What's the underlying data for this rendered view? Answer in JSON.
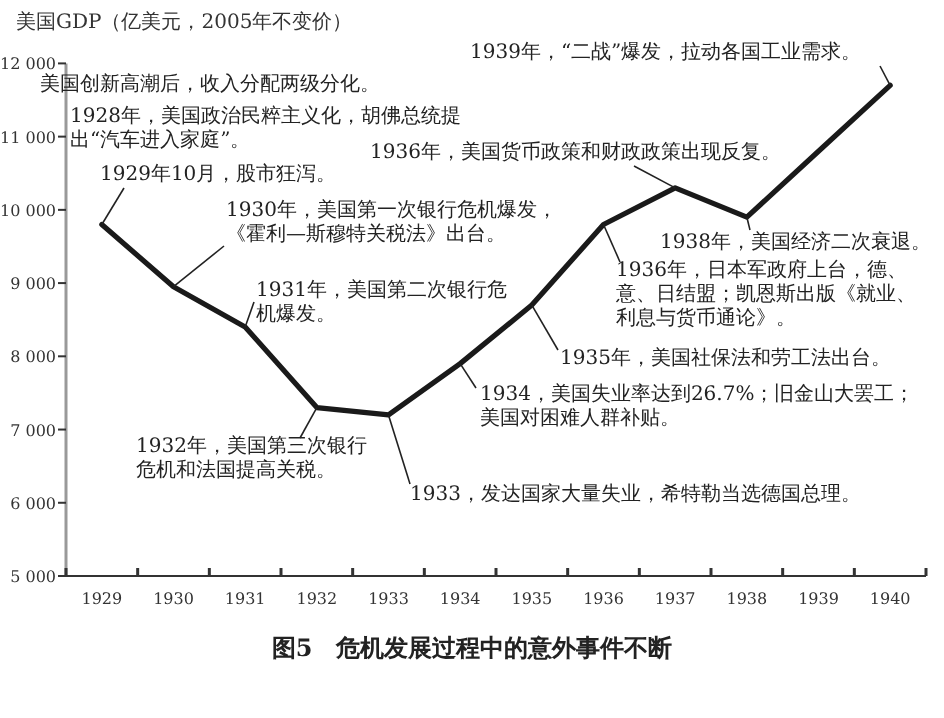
{
  "chart_data": {
    "type": "line",
    "title": "图5　危机发展过程中的意外事件不断",
    "ylabel": "美国GDP（亿美元，2005年不变价）",
    "categories": [
      "1929",
      "1930",
      "1931",
      "1932",
      "1933",
      "1934",
      "1935",
      "1936",
      "1937",
      "1938",
      "1939",
      "1940"
    ],
    "values": [
      9800,
      8950,
      8400,
      7300,
      7200,
      7900,
      8700,
      9800,
      10300,
      9900,
      10800,
      11700
    ],
    "color": "#1a1a1a",
    "marker": "none",
    "line_style": "solid",
    "grid": false,
    "ylim": [
      5000,
      12000
    ],
    "yticks": [
      {
        "value": 5000,
        "label": "5 000"
      },
      {
        "value": 6000,
        "label": "6 000"
      },
      {
        "value": 7000,
        "label": "7 000"
      },
      {
        "value": 8000,
        "label": "8 000"
      },
      {
        "value": 9000,
        "label": "9 000"
      },
      {
        "value": 10000,
        "label": "10 000"
      },
      {
        "value": 11000,
        "label": "11 000"
      },
      {
        "value": 12000,
        "label": "12 000"
      }
    ],
    "annotations": [
      "美国创新高潮后，收入分配两级分化。",
      "1928年，美国政治民粹主义化，胡佛总统提出“汽车进入家庭”。",
      {
        "text": "1929年10月，股市狂泻。",
        "x": "1929",
        "y": 9800
      },
      {
        "text": "1930年，美国第一次银行危机爆发，《霍利—斯穆特关税法》出台。",
        "x": "1930",
        "y": 8950
      },
      {
        "text": "1931年，美国第二次银行危机爆发。",
        "x": "1931",
        "y": 8400
      },
      {
        "text": "1932年，美国第三次银行危机和法国提高关税。",
        "x": "1932",
        "y": 7300
      },
      {
        "text": "1933，发达国家大量失业，希特勒当选德国总理。",
        "x": "1933",
        "y": 7200
      },
      {
        "text": "1934，美国失业率达到26.7%；旧金山大罢工；美国对困难人群补贴。",
        "x": "1934",
        "y": 7900
      },
      {
        "text": "1935年，美国社保法和劳工法出台。",
        "x": "1935",
        "y": 8700
      },
      {
        "text": "1936年，日本军政府上台，德、意、日结盟；凯恩斯出版《就业、利息与货币通论》。",
        "x": "1936",
        "y": 9800
      },
      {
        "text": "1936年，美国货币政策和财政政策出现反复。",
        "x": "1937",
        "y": 10300
      },
      {
        "text": "1938年，美国经济二次衰退。",
        "x": "1938",
        "y": 9900
      },
      {
        "text": "1939年，“二战”爆发，拉动各国工业需求。",
        "x": "1940",
        "y": 11700
      }
    ]
  }
}
